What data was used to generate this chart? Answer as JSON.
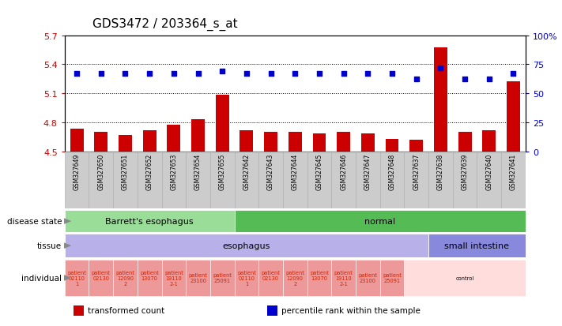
{
  "title": "GDS3472 / 203364_s_at",
  "samples": [
    "GSM327649",
    "GSM327650",
    "GSM327651",
    "GSM327652",
    "GSM327653",
    "GSM327654",
    "GSM327655",
    "GSM327642",
    "GSM327643",
    "GSM327644",
    "GSM327645",
    "GSM327646",
    "GSM327647",
    "GSM327648",
    "GSM327637",
    "GSM327638",
    "GSM327639",
    "GSM327640",
    "GSM327641"
  ],
  "bar_values": [
    4.73,
    4.7,
    4.67,
    4.72,
    4.77,
    4.83,
    5.08,
    4.72,
    4.7,
    4.7,
    4.68,
    4.7,
    4.68,
    4.63,
    4.62,
    5.57,
    4.7,
    4.72,
    5.22
  ],
  "dot_values": [
    67,
    67,
    67,
    67,
    67,
    67,
    69,
    67,
    67,
    67,
    67,
    67,
    67,
    67,
    62,
    72,
    62,
    62,
    67
  ],
  "bar_base": 4.5,
  "ylim_min": 4.5,
  "ylim_max": 5.7,
  "y2lim_min": 0,
  "y2lim_max": 100,
  "yticks_left": [
    4.5,
    4.8,
    5.1,
    5.4,
    5.7
  ],
  "y2ticks": [
    0,
    25,
    50,
    75,
    100
  ],
  "y2tick_labels": [
    "0",
    "25",
    "50",
    "75",
    "100%"
  ],
  "bar_color": "#cc0000",
  "dot_color": "#0000cc",
  "disease_state_groups": [
    {
      "label": "Barrett's esophagus",
      "start": 0,
      "end": 7,
      "color": "#99dd99"
    },
    {
      "label": "normal",
      "start": 7,
      "end": 19,
      "color": "#55bb55"
    }
  ],
  "tissue_groups": [
    {
      "label": "esophagus",
      "start": 0,
      "end": 15,
      "color": "#b8b0e8"
    },
    {
      "label": "small intestine",
      "start": 15,
      "end": 19,
      "color": "#8888dd"
    }
  ],
  "individual_groups": [
    {
      "label": "patient\n02110\n1",
      "start": 0,
      "end": 1,
      "color": "#ee9999"
    },
    {
      "label": "patient\n02130\n ",
      "start": 1,
      "end": 2,
      "color": "#ee9999"
    },
    {
      "label": "patient\n12090\n2",
      "start": 2,
      "end": 3,
      "color": "#ee9999"
    },
    {
      "label": "patient\n13070\n ",
      "start": 3,
      "end": 4,
      "color": "#ee9999"
    },
    {
      "label": "patient\n19110\n2-1",
      "start": 4,
      "end": 5,
      "color": "#ee9999"
    },
    {
      "label": "patient\n23100",
      "start": 5,
      "end": 6,
      "color": "#ee9999"
    },
    {
      "label": "patient\n25091",
      "start": 6,
      "end": 7,
      "color": "#ee9999"
    },
    {
      "label": "patient\n02110\n1",
      "start": 7,
      "end": 8,
      "color": "#ee9999"
    },
    {
      "label": "patient\n02130\n ",
      "start": 8,
      "end": 9,
      "color": "#ee9999"
    },
    {
      "label": "patient\n12090\n2",
      "start": 9,
      "end": 10,
      "color": "#ee9999"
    },
    {
      "label": "patient\n13070\n ",
      "start": 10,
      "end": 11,
      "color": "#ee9999"
    },
    {
      "label": "patient\n19110\n2-1",
      "start": 11,
      "end": 12,
      "color": "#ee9999"
    },
    {
      "label": "patient\n23100",
      "start": 12,
      "end": 13,
      "color": "#ee9999"
    },
    {
      "label": "patient\n25091",
      "start": 13,
      "end": 14,
      "color": "#ee9999"
    },
    {
      "label": "control",
      "start": 14,
      "end": 19,
      "color": "#ffdddd"
    }
  ],
  "legend_items": [
    {
      "color": "#cc0000",
      "label": "transformed count"
    },
    {
      "color": "#0000cc",
      "label": "percentile rank within the sample"
    }
  ],
  "row_labels": [
    {
      "text": "disease state",
      "arrow": true
    },
    {
      "text": "tissue",
      "arrow": true
    },
    {
      "text": "individual",
      "arrow": true
    }
  ],
  "title_fontsize": 11,
  "axis_color_left": "#cc0000",
  "axis_color_right": "#0000cc",
  "sample_box_color": "#cccccc",
  "sample_box_edge": "#aaaaaa"
}
